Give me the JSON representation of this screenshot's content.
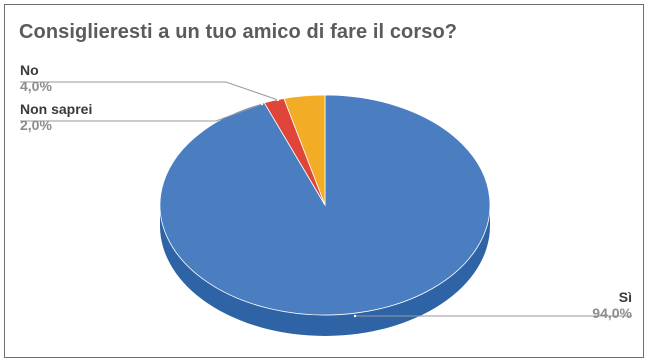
{
  "chart_data": {
    "type": "pie",
    "title": "Consiglieresti a un tuo amico di fare il corso?",
    "three_d": true,
    "slices": [
      {
        "label": "Sì",
        "value": 94.0,
        "display": "94,0%",
        "color": "#4a7ec1",
        "side_color": "#2e63a6"
      },
      {
        "label": "Non saprei",
        "value": 2.0,
        "display": "2,0%",
        "color": "#e0453a",
        "side_color": "#a83128"
      },
      {
        "label": "No",
        "value": 4.0,
        "display": "4,0%",
        "color": "#f3ac26",
        "side_color": "#c88614"
      }
    ],
    "legend": "none",
    "label_positions": "outside-with-leader-lines"
  }
}
